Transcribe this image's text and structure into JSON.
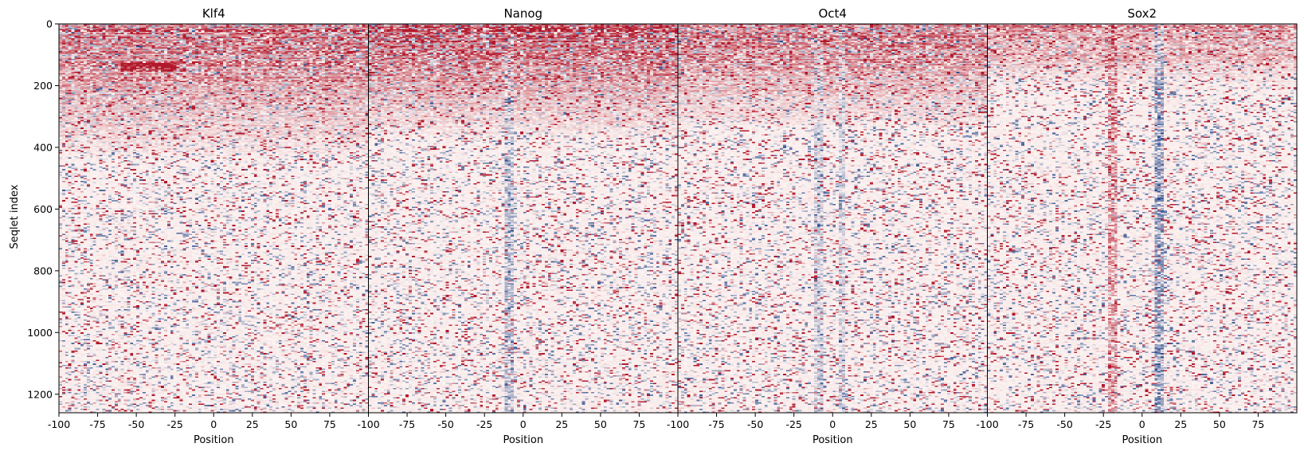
{
  "chart_data": {
    "type": "heatmap",
    "layout": "4 side-by-side heatmap panels sharing the y axis",
    "colormap": "diverging red (positive) / white (zero) / blue (negative)",
    "colors": {
      "positive": "#b2182b",
      "zero": "#fdf4f2",
      "negative": "#2c4d8f"
    },
    "ylabel": "Seqlet index",
    "ylim": [
      1260,
      0
    ],
    "yticks": [
      "0",
      "200",
      "400",
      "600",
      "800",
      "1000",
      "1200"
    ],
    "ytick_values": [
      0,
      200,
      400,
      600,
      800,
      1000,
      1200
    ],
    "panels": [
      {
        "title": "Klf4",
        "xlabel": "Position",
        "xlim": [
          -100,
          100
        ],
        "xticks": [
          "-100",
          "-75",
          "-50",
          "-25",
          "0",
          "25",
          "50",
          "75"
        ],
        "xtick_values": [
          -100,
          -75,
          -50,
          -25,
          0,
          25,
          50,
          75
        ],
        "rows": 1260,
        "positions": 200,
        "pattern": "dense red signal in top ~450 rows, hot band near rows 130-150 at positions -60 to -25, sparse mixed red/blue below"
      },
      {
        "title": "Nanog",
        "xlabel": "Position",
        "xlim": [
          -100,
          100
        ],
        "xticks": [
          "-100",
          "-75",
          "-50",
          "-25",
          "0",
          "25",
          "50",
          "75"
        ],
        "xtick_values": [
          -100,
          -75,
          -50,
          -25,
          0,
          25,
          50,
          75
        ],
        "rows": 1260,
        "positions": 200,
        "pattern": "strong dark-red signal in top ~380 rows, faint blue column near position -10, mixed red/blue throughout"
      },
      {
        "title": "Oct4",
        "xlabel": "Position",
        "xlim": [
          -100,
          100
        ],
        "xticks": [
          "-100",
          "-75",
          "-50",
          "-25",
          "0",
          "25",
          "50",
          "75"
        ],
        "xtick_values": [
          -100,
          -75,
          -50,
          -25,
          0,
          25,
          50,
          75
        ],
        "rows": 1260,
        "positions": 200,
        "pattern": "red-dominated top ~350 rows, faint blue columns near positions -10 and 5, mixed below"
      },
      {
        "title": "Sox2",
        "xlabel": "Position",
        "xlim": [
          -100,
          100
        ],
        "xticks": [
          "-100",
          "-75",
          "-50",
          "-25",
          "0",
          "25",
          "50",
          "75"
        ],
        "xtick_values": [
          -100,
          -75,
          -50,
          -25,
          0,
          25,
          50,
          75
        ],
        "rows": 1260,
        "positions": 200,
        "pattern": "lighter red overall, distinct dark vertical streaks near positions -20 and 10 spanning all rows"
      }
    ],
    "grid": false,
    "legend": "none"
  }
}
